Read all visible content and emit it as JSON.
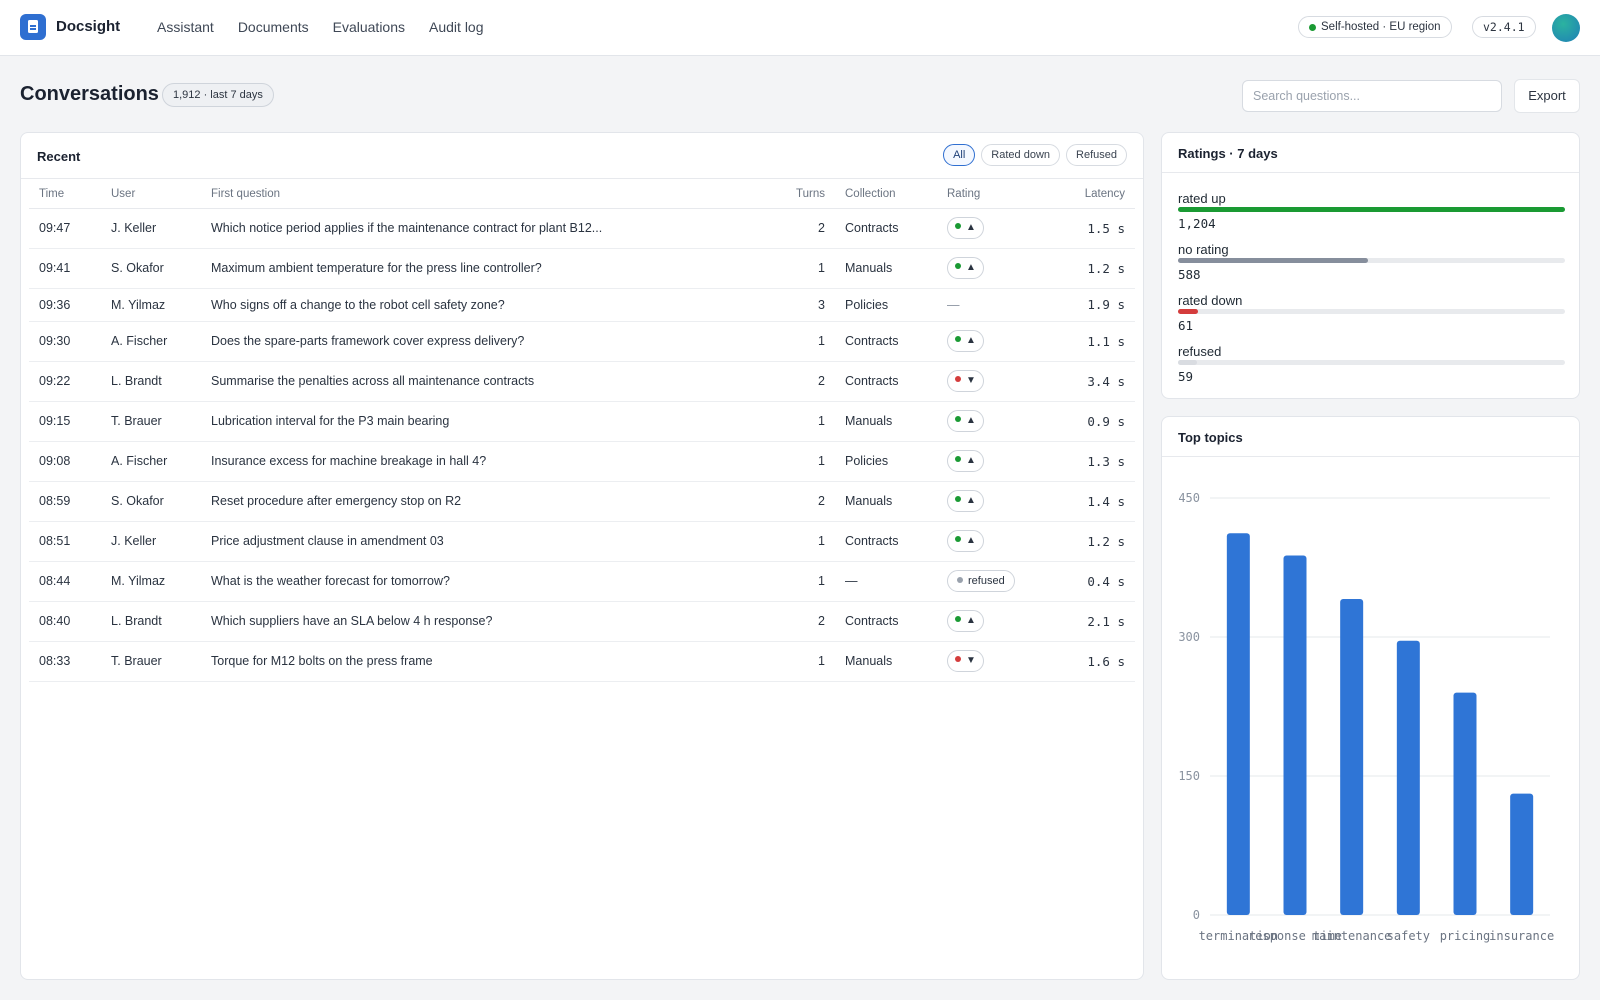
{
  "app": {
    "name": "Docsight",
    "nav": [
      "Assistant",
      "Documents",
      "Evaluations",
      "Audit log"
    ],
    "status": "Self-hosted · EU region",
    "version": "v2.4.1"
  },
  "header": {
    "title": "Conversations",
    "count_badge": "1,912 · last 7 days",
    "search_placeholder": "Search questions...",
    "export_label": "Export"
  },
  "recent": {
    "title": "Recent",
    "filters": [
      "All",
      "Rated down",
      "Refused"
    ],
    "active_filter": "All",
    "columns": [
      "Time",
      "User",
      "First question",
      "Turns",
      "Collection",
      "Rating",
      "Latency"
    ],
    "rows": [
      {
        "time": "09:47",
        "user": "J. Keller",
        "question": "Which notice period applies if the maintenance contract for plant B12...",
        "turns": "2",
        "collection": "Contracts",
        "rating": "up",
        "latency": "1.5 s"
      },
      {
        "time": "09:41",
        "user": "S. Okafor",
        "question": "Maximum ambient temperature for the press line controller?",
        "turns": "1",
        "collection": "Manuals",
        "rating": "up",
        "latency": "1.2 s"
      },
      {
        "time": "09:36",
        "user": "M. Yilmaz",
        "question": "Who signs off a change to the robot cell safety zone?",
        "turns": "3",
        "collection": "Policies",
        "rating": "none",
        "latency": "1.9 s"
      },
      {
        "time": "09:30",
        "user": "A. Fischer",
        "question": "Does the spare-parts framework cover express delivery?",
        "turns": "1",
        "collection": "Contracts",
        "rating": "up",
        "latency": "1.1 s"
      },
      {
        "time": "09:22",
        "user": "L. Brandt",
        "question": "Summarise the penalties across all maintenance contracts",
        "turns": "2",
        "collection": "Contracts",
        "rating": "down",
        "latency": "3.4 s"
      },
      {
        "time": "09:15",
        "user": "T. Brauer",
        "question": "Lubrication interval for the P3 main bearing",
        "turns": "1",
        "collection": "Manuals",
        "rating": "up",
        "latency": "0.9 s"
      },
      {
        "time": "09:08",
        "user": "A. Fischer",
        "question": "Insurance excess for machine breakage in hall 4?",
        "turns": "1",
        "collection": "Policies",
        "rating": "up",
        "latency": "1.3 s"
      },
      {
        "time": "08:59",
        "user": "S. Okafor",
        "question": "Reset procedure after emergency stop on R2",
        "turns": "2",
        "collection": "Manuals",
        "rating": "up",
        "latency": "1.4 s"
      },
      {
        "time": "08:51",
        "user": "J. Keller",
        "question": "Price adjustment clause in amendment 03",
        "turns": "1",
        "collection": "Contracts",
        "rating": "up",
        "latency": "1.2 s"
      },
      {
        "time": "08:44",
        "user": "M. Yilmaz",
        "question": "What is the weather forecast for tomorrow?",
        "turns": "1",
        "collection": "—",
        "rating": "refused",
        "latency": "0.4 s"
      },
      {
        "time": "08:40",
        "user": "L. Brandt",
        "question": "Which suppliers have an SLA below 4 h response?",
        "turns": "2",
        "collection": "Contracts",
        "rating": "up",
        "latency": "2.1 s"
      },
      {
        "time": "08:33",
        "user": "T. Brauer",
        "question": "Torque for M12 bolts on the press frame",
        "turns": "1",
        "collection": "Manuals",
        "rating": "down",
        "latency": "1.6 s"
      }
    ],
    "rating_labels": {
      "up": "▲",
      "down": "▼",
      "refused": "refused",
      "none": "—"
    }
  },
  "ratings": {
    "title": "Ratings · 7 days",
    "items": [
      {
        "label": "rated up",
        "value": "1,204",
        "share": 1.0,
        "color": "#1a9a33"
      },
      {
        "label": "no rating",
        "value": "588",
        "share": 0.49,
        "color": "#868e9c"
      },
      {
        "label": "rated down",
        "value": "61",
        "share": 0.051,
        "color": "#d43c3c"
      },
      {
        "label": "refused",
        "value": "59",
        "share": 0.049,
        "color": "#d9dce1"
      }
    ]
  },
  "topics": {
    "title": "Top topics"
  },
  "chart_data": {
    "type": "bar",
    "categories": [
      "termination",
      "response time",
      "maintenance",
      "safety",
      "pricing",
      "insurance"
    ],
    "values": [
      412,
      388,
      341,
      296,
      240,
      131
    ],
    "yticks": [
      0,
      150,
      300,
      450
    ],
    "ylim": [
      0,
      450
    ],
    "grid": true,
    "color": "#2f75d6"
  }
}
